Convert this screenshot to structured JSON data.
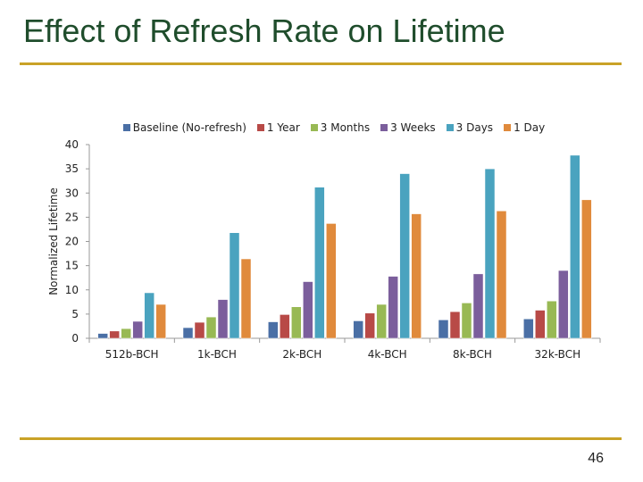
{
  "slide": {
    "title": "Effect of Refresh Rate on Lifetime",
    "page_number": "46",
    "rule_color": "#c9a227",
    "title_color": "#1f4d2c"
  },
  "chart_data": {
    "type": "bar",
    "title": "",
    "xlabel": "",
    "ylabel": "Normalized Lifetime",
    "ylim": [
      0,
      40
    ],
    "yticks": [
      0,
      5,
      10,
      15,
      20,
      25,
      30,
      35,
      40
    ],
    "categories": [
      "512b-BCH",
      "1k-BCH",
      "2k-BCH",
      "4k-BCH",
      "8k-BCH",
      "32k-BCH"
    ],
    "legend_position": "top",
    "grid": false,
    "series": [
      {
        "name": "Baseline (No-refresh)",
        "color": "#4a6fa5",
        "values": [
          1.0,
          2.2,
          3.4,
          3.6,
          3.8,
          4.0
        ]
      },
      {
        "name": "1 Year",
        "color": "#b84a47",
        "values": [
          1.5,
          3.3,
          4.9,
          5.2,
          5.5,
          5.8
        ]
      },
      {
        "name": "3 Months",
        "color": "#98b954",
        "values": [
          2.0,
          4.4,
          6.5,
          7.0,
          7.3,
          7.7
        ]
      },
      {
        "name": "3 Weeks",
        "color": "#7b5e9c",
        "values": [
          3.5,
          8.0,
          11.7,
          12.8,
          13.3,
          14.0
        ]
      },
      {
        "name": "3 Days",
        "color": "#4aa3bf",
        "values": [
          9.4,
          21.8,
          31.2,
          34.0,
          35.0,
          37.8
        ]
      },
      {
        "name": "1 Day",
        "color": "#e08a3c",
        "values": [
          7.0,
          16.4,
          23.7,
          25.7,
          26.3,
          28.6
        ]
      }
    ]
  }
}
